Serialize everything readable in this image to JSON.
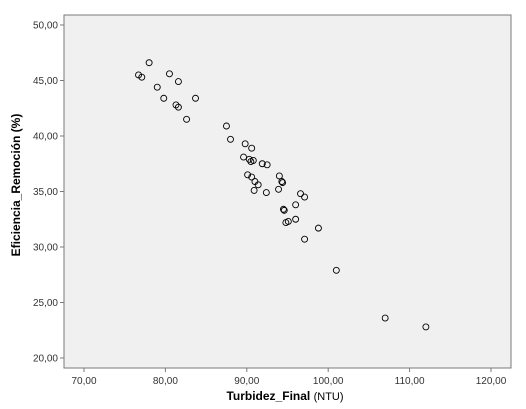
{
  "chart_data": {
    "type": "scatter",
    "title": "",
    "xlabel": "Turbidez_Final",
    "xlabel_unit": "(NTU)",
    "ylabel": "Eficiencia_Remoción (%)",
    "xlim": [
      70,
      120
    ],
    "ylim": [
      20,
      50
    ],
    "x_ticks": [
      "70,00",
      "80,00",
      "90,00",
      "100,00",
      "110,00",
      "120,00"
    ],
    "y_ticks": [
      "20,00",
      "25,00",
      "30,00",
      "35,00",
      "40,00",
      "45,00",
      "50,00"
    ],
    "grid": false,
    "legend": "none",
    "plot_background": "#f0f0f0",
    "marker_color": "#000000",
    "points": [
      {
        "x": 76.7,
        "y": 45.5
      },
      {
        "x": 77.1,
        "y": 45.3
      },
      {
        "x": 78.0,
        "y": 46.6
      },
      {
        "x": 79.0,
        "y": 44.4
      },
      {
        "x": 79.8,
        "y": 43.4
      },
      {
        "x": 80.5,
        "y": 45.6
      },
      {
        "x": 81.3,
        "y": 42.8
      },
      {
        "x": 81.6,
        "y": 42.6
      },
      {
        "x": 81.6,
        "y": 44.9
      },
      {
        "x": 82.6,
        "y": 41.5
      },
      {
        "x": 83.7,
        "y": 43.4
      },
      {
        "x": 87.5,
        "y": 40.9
      },
      {
        "x": 88.0,
        "y": 39.7
      },
      {
        "x": 89.6,
        "y": 38.1
      },
      {
        "x": 89.8,
        "y": 39.3
      },
      {
        "x": 90.3,
        "y": 37.9
      },
      {
        "x": 90.5,
        "y": 37.7
      },
      {
        "x": 90.6,
        "y": 38.9
      },
      {
        "x": 90.8,
        "y": 37.8
      },
      {
        "x": 90.1,
        "y": 36.5
      },
      {
        "x": 90.6,
        "y": 36.3
      },
      {
        "x": 91.0,
        "y": 35.9
      },
      {
        "x": 91.4,
        "y": 35.6
      },
      {
        "x": 90.9,
        "y": 35.1
      },
      {
        "x": 91.9,
        "y": 37.5
      },
      {
        "x": 92.5,
        "y": 37.4
      },
      {
        "x": 92.4,
        "y": 34.9
      },
      {
        "x": 94.0,
        "y": 36.4
      },
      {
        "x": 94.3,
        "y": 35.9
      },
      {
        "x": 94.4,
        "y": 35.8
      },
      {
        "x": 93.9,
        "y": 35.2
      },
      {
        "x": 94.5,
        "y": 33.4
      },
      {
        "x": 94.6,
        "y": 33.3
      },
      {
        "x": 94.8,
        "y": 32.2
      },
      {
        "x": 95.1,
        "y": 32.3
      },
      {
        "x": 96.0,
        "y": 33.8
      },
      {
        "x": 96.6,
        "y": 34.8
      },
      {
        "x": 97.1,
        "y": 34.5
      },
      {
        "x": 96.0,
        "y": 32.5
      },
      {
        "x": 97.1,
        "y": 30.7
      },
      {
        "x": 98.8,
        "y": 31.7
      },
      {
        "x": 101.0,
        "y": 27.9
      },
      {
        "x": 107.0,
        "y": 23.6
      },
      {
        "x": 112.0,
        "y": 22.8
      }
    ]
  }
}
